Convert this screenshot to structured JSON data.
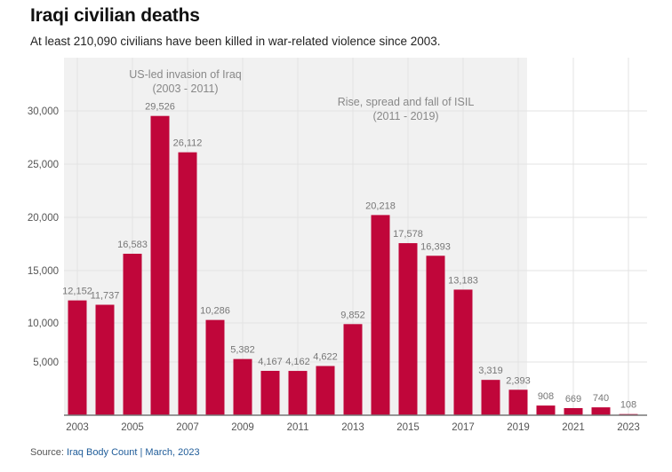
{
  "title": "Iraqi civilian deaths",
  "subtitle": "At least 210,090 civilians have been killed in war-related violence since 2003.",
  "source": {
    "label": "Source: ",
    "text": "Iraq Body Count | March, 2023"
  },
  "colors": {
    "bar": "#c0063a",
    "region": "#f1f1f1",
    "grid": "#e3e3e3",
    "axis": "#777777"
  },
  "chart_data": {
    "type": "bar",
    "title": "Iraqi civilian deaths",
    "xlabel": "",
    "ylabel": "",
    "ylim": [
      0,
      33000
    ],
    "grid": true,
    "categories": [
      "2003",
      "2004",
      "2005",
      "2006",
      "2007",
      "2008",
      "2009",
      "2010",
      "2011",
      "2012",
      "2013",
      "2014",
      "2015",
      "2016",
      "2017",
      "2018",
      "2019",
      "2020",
      "2021",
      "2022",
      "2023"
    ],
    "values": [
      12152,
      11737,
      16583,
      29526,
      26112,
      10286,
      5382,
      4167,
      4162,
      4622,
      9852,
      20218,
      17578,
      16393,
      13183,
      3319,
      2393,
      908,
      669,
      740,
      108
    ],
    "data_labels": [
      "12,152",
      "11,737",
      "16,583",
      "29,526",
      "26,112",
      "10,286",
      "5,382",
      "4,167",
      "4,162",
      "4,622",
      "9,852",
      "20,218",
      "17,578",
      "16,393",
      "13,183",
      "3,319",
      "2,393",
      "908",
      "669",
      "740",
      "108"
    ],
    "x_tick_labels": [
      "2003",
      "2005",
      "2007",
      "2009",
      "2011",
      "2013",
      "2015",
      "2017",
      "2019",
      "2021",
      "2023"
    ],
    "y_ticks": [
      5000,
      10000,
      15000,
      20000,
      25000,
      30000
    ],
    "y_tick_labels": [
      "5,000",
      "10,000",
      "15,000",
      "20,000",
      "25,000",
      "30,000"
    ],
    "regions": [
      {
        "label_line1": "US-led invasion of Iraq",
        "label_line2": "(2003 - 2011)",
        "from": "2003",
        "to": "2011"
      },
      {
        "label_line1": "Rise, spread and fall of ISIL",
        "label_line2": "(2011 - 2019)",
        "from": "2011",
        "to": "2019"
      }
    ]
  }
}
